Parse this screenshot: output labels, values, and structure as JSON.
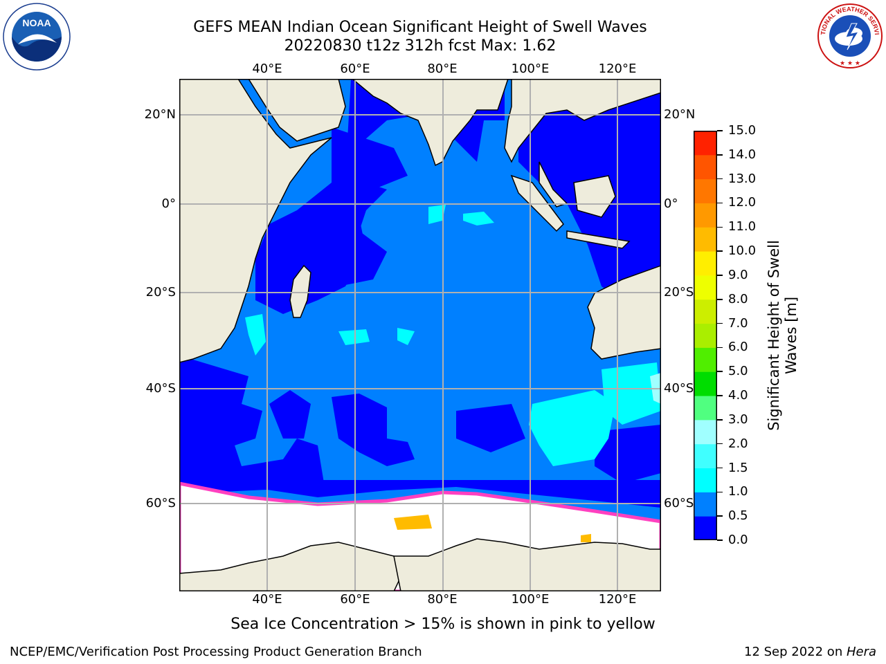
{
  "title": {
    "line1": "GEFS MEAN Indian Ocean Significant Height of Swell Waves",
    "line2": "20220830 t12z 312h fcst   Max: 1.62"
  },
  "map": {
    "lon_labels": [
      "40°E",
      "60°E",
      "80°E",
      "100°E",
      "120°E"
    ],
    "lat_labels": [
      "20°N",
      "0°",
      "20°S",
      "40°S",
      "60°S"
    ],
    "colors": {
      "land": "#eeecdc",
      "ocean_low": "#0000ff",
      "ocean_mid": "#0080ff",
      "swell_1_1_5": "#00ffff",
      "ice": "#ffffff",
      "ice_edge": "#ff40c0",
      "grid": "#b0b0b0"
    }
  },
  "colorbar": {
    "label_line1": "Significant Height of Swell",
    "label_line2": "Waves [m]",
    "ticks": [
      "0.0",
      "0.5",
      "1.0",
      "1.5",
      "2.0",
      "3.0",
      "4.0",
      "5.0",
      "6.0",
      "7.0",
      "8.0",
      "9.0",
      "10.0",
      "11.0",
      "12.0",
      "13.0",
      "14.0",
      "15.0"
    ],
    "colors": [
      "#0000ff",
      "#0080ff",
      "#00ffff",
      "#40ffff",
      "#a0ffff",
      "#50ff80",
      "#00dd00",
      "#50ee00",
      "#aaee00",
      "#ccee00",
      "#eeff00",
      "#ffee00",
      "#ffbb00",
      "#ff9900",
      "#ff7700",
      "#ff5500",
      "#ff2200"
    ]
  },
  "footer": {
    "note": "Sea Ice Concentration > 15% is shown in pink to yellow",
    "credit": "NCEP/EMC/Verification Post Processing Product Generation Branch",
    "date_prefix": "12 Sep 2022 on ",
    "date_host": "Hera"
  },
  "logos": {
    "noaa_text": "NOAA",
    "noaa_ring": "NATIONAL OCEANIC AND ATMOSPHERIC ADMINISTRATION · U.S. DEPARTMENT OF COMMERCE",
    "nws_ring": "NATIONAL WEATHER SERVICE"
  }
}
